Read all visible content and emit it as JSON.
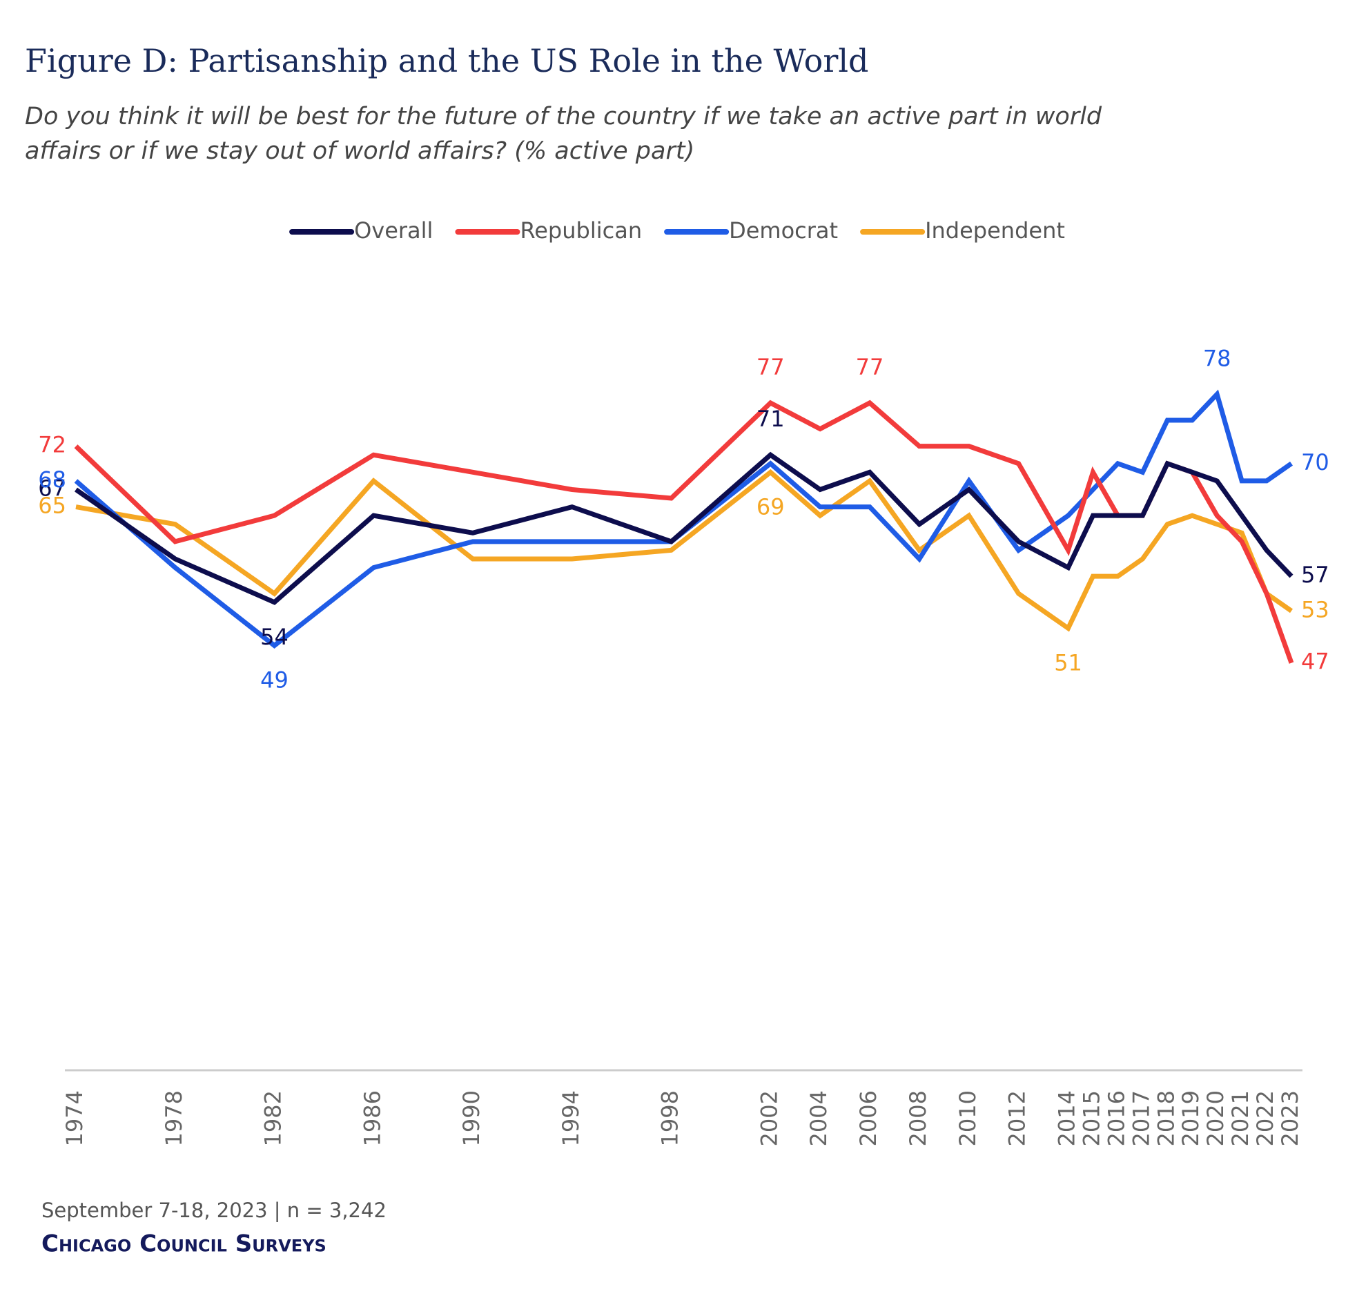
{
  "chart_data": {
    "type": "line",
    "title": "Figure D: Partisanship and the US Role in the World",
    "subtitle": [
      "Do you think it will be best for the future of the country if we take an active part in world",
      "affairs or if we stay out of world affairs? (% active part)"
    ],
    "x": [
      1974,
      1978,
      1982,
      1986,
      1990,
      1994,
      1998,
      2002,
      2004,
      2006,
      2008,
      2010,
      2012,
      2014,
      2015,
      2016,
      2017,
      2018,
      2019,
      2020,
      2021,
      2022,
      2023
    ],
    "xlim": [
      1974,
      2023
    ],
    "ylim": [
      0,
      100
    ],
    "legend": "top",
    "series": [
      {
        "name": "Overall",
        "color": "#0d0d4d",
        "labeled_points": [
          0,
          2,
          7,
          22
        ],
        "values": [
          67,
          59,
          54,
          64,
          62,
          65,
          61,
          71,
          67,
          69,
          63,
          67,
          61,
          58,
          64,
          64,
          64,
          70,
          69,
          68,
          64,
          60,
          57
        ]
      },
      {
        "name": "Republican",
        "color": "#f23b3b",
        "labeled_points": [
          0,
          7,
          9,
          22
        ],
        "values": [
          72,
          61,
          64,
          71,
          69,
          67,
          66,
          77,
          74,
          77,
          72,
          72,
          70,
          60,
          69,
          64,
          64,
          70,
          69,
          64,
          61,
          55,
          47
        ]
      },
      {
        "name": "Democrat",
        "color": "#1f5ce6",
        "labeled_points": [
          0,
          2,
          19,
          22
        ],
        "values": [
          68,
          58,
          49,
          58,
          61,
          61,
          61,
          70,
          65,
          65,
          59,
          68,
          60,
          64,
          67,
          70,
          69,
          75,
          75,
          78,
          68,
          68,
          70
        ]
      },
      {
        "name": "Independent",
        "color": "#f5a623",
        "labeled_points": [
          0,
          7,
          13,
          22
        ],
        "values": [
          65,
          63,
          55,
          68,
          59,
          59,
          60,
          69,
          64,
          68,
          60,
          64,
          55,
          51,
          57,
          57,
          59,
          63,
          64,
          63,
          62,
          55,
          53
        ]
      }
    ],
    "note": "September 7-18, 2023 | n = 3,242",
    "source": "Chicago Council Surveys"
  }
}
